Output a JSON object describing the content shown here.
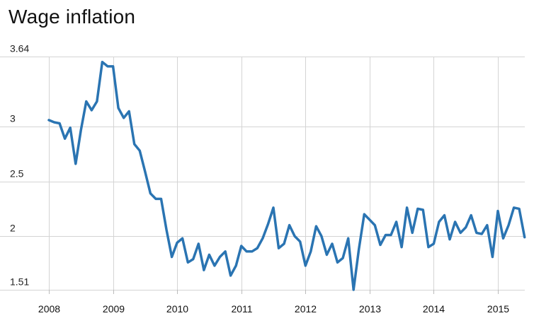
{
  "chart_data": {
    "type": "line",
    "title": "Wage inflation",
    "xlabel": "",
    "ylabel": "",
    "ylim": [
      1.51,
      3.64
    ],
    "yticks": [
      {
        "value": 3.64,
        "label": "3.64"
      },
      {
        "value": 3.0,
        "label": "3"
      },
      {
        "value": 2.5,
        "label": "2.5"
      },
      {
        "value": 2.0,
        "label": "2"
      },
      {
        "value": 1.51,
        "label": "1.51"
      }
    ],
    "xlim": [
      2008.0,
      2015.42
    ],
    "xticks": [
      {
        "value": 2008,
        "label": "2008"
      },
      {
        "value": 2009,
        "label": "2009"
      },
      {
        "value": 2010,
        "label": "2010"
      },
      {
        "value": 2011,
        "label": "2011"
      },
      {
        "value": 2012,
        "label": "2012"
      },
      {
        "value": 2013,
        "label": "2013"
      },
      {
        "value": 2014,
        "label": "2014"
      },
      {
        "value": 2015,
        "label": "2015"
      }
    ],
    "grid": true,
    "line_color": "#2a74b2",
    "grid_color": "#d4d4d4",
    "series": [
      {
        "name": "",
        "x": [
          2008.0,
          2008.083,
          2008.167,
          2008.25,
          2008.333,
          2008.417,
          2008.5,
          2008.583,
          2008.667,
          2008.75,
          2008.833,
          2008.917,
          2009.0,
          2009.083,
          2009.167,
          2009.25,
          2009.333,
          2009.417,
          2009.5,
          2009.583,
          2009.667,
          2009.75,
          2009.833,
          2009.917,
          2010.0,
          2010.083,
          2010.167,
          2010.25,
          2010.333,
          2010.417,
          2010.5,
          2010.583,
          2010.667,
          2010.75,
          2010.833,
          2010.917,
          2011.0,
          2011.083,
          2011.167,
          2011.25,
          2011.333,
          2011.417,
          2011.5,
          2011.583,
          2011.667,
          2011.75,
          2011.833,
          2011.917,
          2012.0,
          2012.083,
          2012.167,
          2012.25,
          2012.333,
          2012.417,
          2012.5,
          2012.583,
          2012.667,
          2012.75,
          2012.833,
          2012.917,
          2013.0,
          2013.083,
          2013.167,
          2013.25,
          2013.333,
          2013.417,
          2013.5,
          2013.583,
          2013.667,
          2013.75,
          2013.833,
          2013.917,
          2014.0,
          2014.083,
          2014.167,
          2014.25,
          2014.333,
          2014.417,
          2014.5,
          2014.583,
          2014.667,
          2014.75,
          2014.833,
          2014.917,
          2015.0,
          2015.083,
          2015.167,
          2015.25,
          2015.333,
          2015.417
        ],
        "values": [
          3.06,
          3.04,
          3.03,
          2.89,
          2.99,
          2.66,
          2.97,
          3.23,
          3.15,
          3.23,
          3.59,
          3.55,
          3.55,
          3.17,
          3.08,
          3.14,
          2.84,
          2.78,
          2.59,
          2.39,
          2.34,
          2.34,
          2.06,
          1.81,
          1.94,
          1.98,
          1.76,
          1.79,
          1.93,
          1.69,
          1.83,
          1.73,
          1.81,
          1.86,
          1.64,
          1.73,
          1.91,
          1.86,
          1.86,
          1.89,
          1.98,
          2.11,
          2.26,
          1.89,
          1.93,
          2.1,
          2.0,
          1.95,
          1.73,
          1.86,
          2.09,
          2.0,
          1.83,
          1.93,
          1.76,
          1.8,
          1.98,
          1.51,
          1.88,
          2.2,
          2.15,
          2.1,
          1.92,
          2.01,
          2.01,
          2.13,
          1.9,
          2.26,
          2.03,
          2.25,
          2.24,
          1.9,
          1.93,
          2.13,
          2.19,
          1.97,
          2.13,
          2.03,
          2.08,
          2.19,
          2.03,
          2.02,
          2.1,
          1.81,
          2.23,
          1.98,
          2.1,
          2.26,
          2.25,
          1.99
        ]
      }
    ]
  }
}
